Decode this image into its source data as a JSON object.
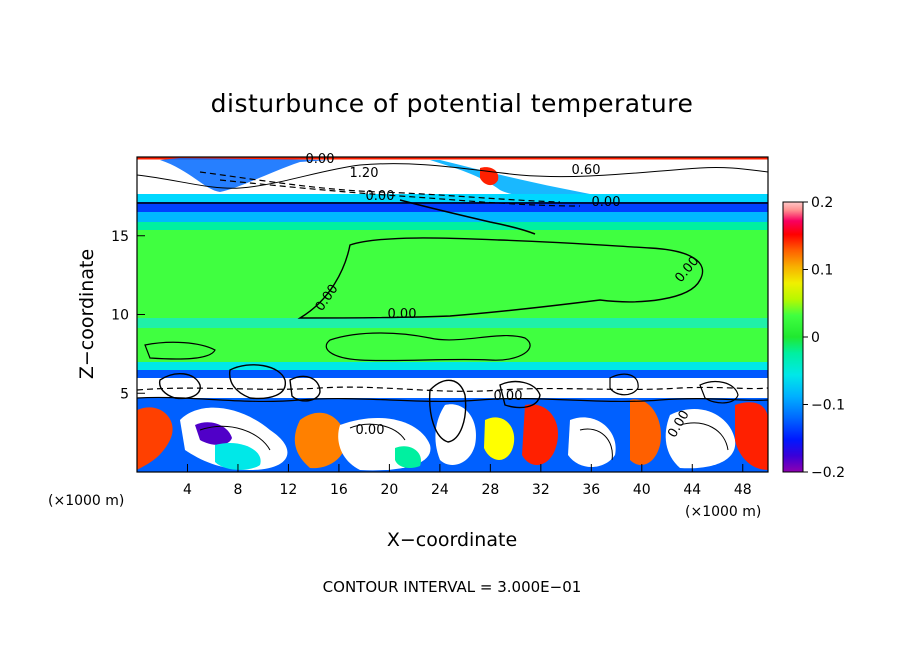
{
  "chart_data": {
    "type": "heatmap",
    "title": "disturbunce of potential temperature",
    "xlabel": "X−coordinate",
    "ylabel": "Z−coordinate",
    "x_unit": "(×1000 m)",
    "y_unit": "(×1000 m)",
    "xlim": [
      0,
      50
    ],
    "ylim": [
      0,
      20
    ],
    "x_ticks": [
      4,
      8,
      12,
      16,
      20,
      24,
      28,
      32,
      36,
      40,
      44,
      48
    ],
    "y_ticks": [
      5,
      10,
      15
    ],
    "colorbar": {
      "range": [
        -0.2,
        0.2
      ],
      "ticks": [
        0.2,
        0.1,
        0,
        -0.1,
        -0.2
      ],
      "tick_labels": [
        "0.2",
        "0.1",
        "0",
        "−0.1",
        "−0.2"
      ],
      "colors": [
        "#8f00b0",
        "#3a00d8",
        "#0018ff",
        "#0068ff",
        "#00b0ff",
        "#00e8e8",
        "#00f0a0",
        "#20e830",
        "#40ff40",
        "#b8f800",
        "#f0f000",
        "#f8b000",
        "#ff6000",
        "#ff0000",
        "#f80060",
        "#ff9090",
        "#ffc8c8"
      ]
    },
    "contour_labels": [
      "0.00",
      "1.20",
      "0.00",
      "0.60",
      "0.00",
      "0.00",
      "0.00",
      "0.00",
      "0.00",
      "0.00",
      "0.00"
    ],
    "footer": "CONTOUR INTERVAL = 3.000E−01"
  }
}
